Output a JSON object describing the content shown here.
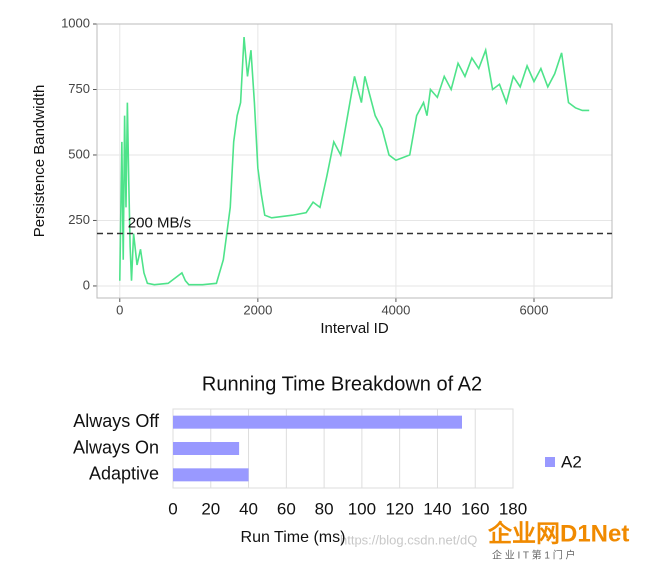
{
  "chart_data": [
    {
      "type": "line",
      "xlabel": "Interval ID",
      "ylabel": "Persistence Bandwidth",
      "grid": true,
      "x": [
        0,
        30,
        50,
        70,
        90,
        110,
        130,
        150,
        170,
        200,
        250,
        300,
        350,
        400,
        500,
        700,
        850,
        900,
        950,
        1000,
        1200,
        1400,
        1500,
        1550,
        1600,
        1650,
        1700,
        1750,
        1800,
        1850,
        1900,
        1950,
        2000,
        2050,
        2100,
        2200,
        2500,
        2700,
        2800,
        2900,
        3000,
        3100,
        3200,
        3300,
        3400,
        3500,
        3550,
        3600,
        3700,
        3800,
        3900,
        4000,
        4100,
        4200,
        4300,
        4400,
        4450,
        4500,
        4600,
        4700,
        4800,
        4900,
        5000,
        5100,
        5200,
        5300,
        5400,
        5500,
        5600,
        5700,
        5800,
        5900,
        6000,
        6100,
        6200,
        6300,
        6400,
        6500,
        6600,
        6700,
        6800
      ],
      "series": [
        {
          "color": "#4ee38a",
          "values": [
            20,
            550,
            100,
            650,
            300,
            700,
            400,
            150,
            20,
            200,
            80,
            140,
            50,
            10,
            5,
            10,
            40,
            50,
            20,
            5,
            5,
            10,
            100,
            200,
            300,
            550,
            650,
            700,
            950,
            800,
            900,
            700,
            450,
            350,
            270,
            260,
            270,
            280,
            320,
            300,
            420,
            550,
            500,
            650,
            800,
            700,
            800,
            750,
            650,
            600,
            500,
            480,
            490,
            500,
            650,
            700,
            650,
            750,
            720,
            800,
            750,
            850,
            800,
            870,
            830,
            900,
            750,
            770,
            700,
            800,
            760,
            840,
            780,
            830,
            760,
            810,
            890,
            700,
            680,
            670,
            670
          ]
        }
      ],
      "hline": {
        "value": 200,
        "label": "200 MB/s"
      },
      "xlim": [
        -330,
        7130
      ],
      "ylim": [
        -46,
        1000
      ],
      "xticks": [
        0,
        2000,
        4000,
        6000
      ],
      "yticks": [
        0,
        250,
        500,
        750,
        1000
      ]
    },
    {
      "type": "bar",
      "orientation": "horizontal",
      "title": "Running Time Breakdown of A2",
      "xlabel": "Run Time (ms)",
      "categories": [
        "Always Off",
        "Always On",
        "Adaptive"
      ],
      "series": [
        {
          "name": "A2",
          "color": "#9999ff",
          "values": [
            153,
            35,
            40
          ]
        }
      ],
      "xlim": [
        0,
        180
      ],
      "xticks": [
        0,
        20,
        40,
        60,
        80,
        100,
        120,
        140,
        160,
        180
      ]
    }
  ],
  "watermark": {
    "url": "https://blog.csdn.net/dQ",
    "logo": "企业网D1Net",
    "slogan": "企 业 I T 第 1 门 户"
  }
}
